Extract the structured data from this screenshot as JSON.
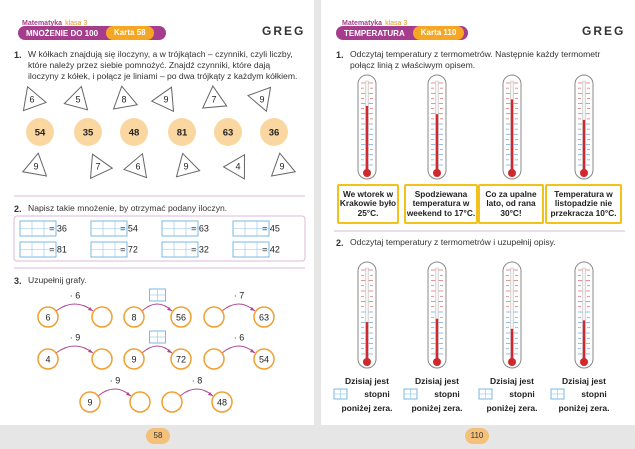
{
  "left_page": {
    "header": {
      "subject": "Matematyka",
      "grade": "klasa 3",
      "topic": "MNOŻENIE DO 100",
      "card": "Karta 58",
      "brand": "GREG"
    },
    "task1": {
      "number": "1.",
      "text": "W kółkach znajdują się iloczyny, a w trójkątach – czynniki, czyli liczby, które należy przez siebie pomnożyć. Znajdź czynniki, które dają iloczyny z kółek, i połącz je liniami – po dwa trójkąty z każdym kółkiem.",
      "top_factors": [
        6,
        5,
        8,
        9,
        7,
        9
      ],
      "products": [
        54,
        35,
        48,
        81,
        63,
        36
      ],
      "bottom_factors": [
        9,
        7,
        6,
        9,
        4,
        9
      ]
    },
    "task2": {
      "number": "2.",
      "text": "Napisz takie mnożenie, by otrzymać podany iloczyn.",
      "products": [
        "= 36",
        "= 54",
        "= 63",
        "= 45",
        "= 81",
        "= 72",
        "= 32",
        "= 42"
      ]
    },
    "task3": {
      "number": "3.",
      "text": "Uzupełnij grafy.",
      "graphs": [
        {
          "operator": "· 6",
          "start": 6
        },
        {
          "start": 8,
          "end": 56
        },
        {
          "operator": "· 7",
          "end": 63
        },
        {
          "operator": "· 9",
          "start": 4
        },
        {
          "start": 9,
          "end": 72
        },
        {
          "operator": "· 6",
          "end": 54
        },
        {
          "operator": "· 9",
          "start": 9
        },
        {
          "operator": "· 8",
          "end": 48
        }
      ]
    },
    "page_number": "58"
  },
  "right_page": {
    "header": {
      "subject": "Matematyka",
      "grade": "klasa 3",
      "topic": "TEMPERATURA",
      "card": "Karta 110",
      "brand": "GREG"
    },
    "task1": {
      "number": "1.",
      "text": "Odczytaj temperatury z termometrów. Następnie każdy termometr połącz linią z właściwym opisem.",
      "descriptions": [
        "We wtorek w Krakowie było 25°C.",
        "Spodziewana temperatura w weekend to 17°C.",
        "Co za upalne lato, od rana 30°C!",
        "Temperatura w listopadzie nie przekracza 10°C."
      ]
    },
    "task2": {
      "number": "2.",
      "text": "Odczytaj temperatury z termometrów i uzupełnij opisy.",
      "captions": [
        {
          "line1": "Dzisiaj jest",
          "line2": "stopni",
          "line3": "poniżej zera."
        },
        {
          "line1": "Dzisiaj jest",
          "line2": "stopni",
          "line3": "poniżej zera."
        },
        {
          "line1": "Dzisiaj jest",
          "line2": "stopni",
          "line3": "poniżej zera."
        },
        {
          "line1": "Dzisiaj jest",
          "line2": "stopni",
          "line3": "poniżej zera."
        }
      ]
    },
    "page_number": "110"
  }
}
